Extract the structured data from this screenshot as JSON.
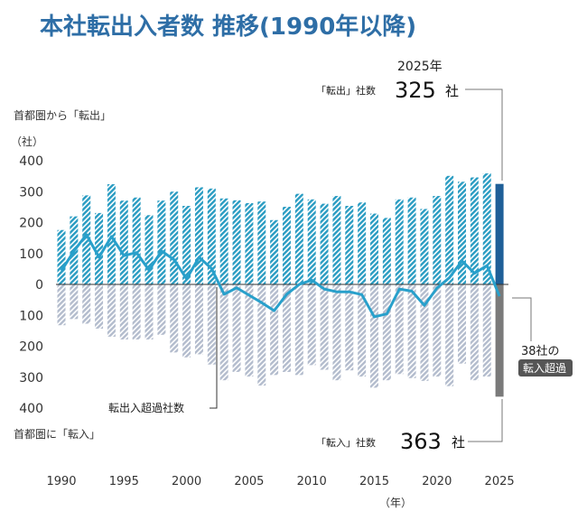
{
  "chart_data": {
    "type": "bar",
    "title": "本社転出入者数 推移(1990年以降)",
    "ylabel": "（社）",
    "xlabel": "（年）",
    "ylim": [
      -400,
      400
    ],
    "y_ticks": [
      "400",
      "300",
      "200",
      "100",
      "0",
      "100",
      "200",
      "300",
      "400"
    ],
    "x_tick_labels": [
      "1990",
      "1995",
      "2000",
      "2005",
      "2010",
      "2015",
      "2020",
      "2025"
    ],
    "upper_label": "首都圏から「転出」",
    "lower_label": "首都圏に「転入」",
    "net_label": "転出入超過社数",
    "years": [
      1990,
      1991,
      1992,
      1993,
      1994,
      1995,
      1996,
      1997,
      1998,
      1999,
      2000,
      2001,
      2002,
      2003,
      2004,
      2005,
      2006,
      2007,
      2008,
      2009,
      2010,
      2011,
      2012,
      2013,
      2014,
      2015,
      2016,
      2017,
      2018,
      2019,
      2020,
      2021,
      2022,
      2023,
      2024,
      2025
    ],
    "series": [
      {
        "key": "out",
        "values": [
          176,
          220,
          288,
          231,
          324,
          271,
          281,
          224,
          271,
          300,
          254,
          314,
          310,
          278,
          272,
          263,
          268,
          208,
          251,
          293,
          275,
          261,
          286,
          254,
          265,
          229,
          215,
          275,
          281,
          244,
          286,
          351,
          332,
          346,
          359,
          325
        ]
      },
      {
        "key": "in",
        "values": [
          132,
          112,
          127,
          143,
          169,
          178,
          178,
          178,
          163,
          220,
          236,
          226,
          259,
          310,
          283,
          298,
          327,
          293,
          283,
          293,
          261,
          276,
          310,
          278,
          298,
          334,
          310,
          290,
          303,
          312,
          298,
          329,
          256,
          310,
          298,
          363
        ]
      },
      {
        "key": "net",
        "values": [
          44,
          108,
          161,
          88,
          155,
          93,
          103,
          46,
          108,
          80,
          18,
          88,
          51,
          -32,
          -11,
          -35,
          -59,
          -85,
          -32,
          0,
          14,
          -15,
          -24,
          -24,
          -33,
          -105,
          -95,
          -15,
          -22,
          -68,
          -12,
          22,
          76,
          36,
          61,
          -38
        ]
      }
    ],
    "colors": {
      "title": "#2e6ea6",
      "out": "#2a9cc2",
      "in": "#b3bccd",
      "net": "#28a0cb",
      "out_2025": "#1f5f98",
      "in_2025": "#7a7a7a",
      "badge": "#555555"
    },
    "annotations": {
      "year": "2025年",
      "out_label": "「転出」社数",
      "out_value": "325",
      "in_label": "「転入」社数",
      "in_value": "363",
      "unit": "社",
      "net_text": "38社の",
      "net_badge": "転入超過"
    }
  }
}
